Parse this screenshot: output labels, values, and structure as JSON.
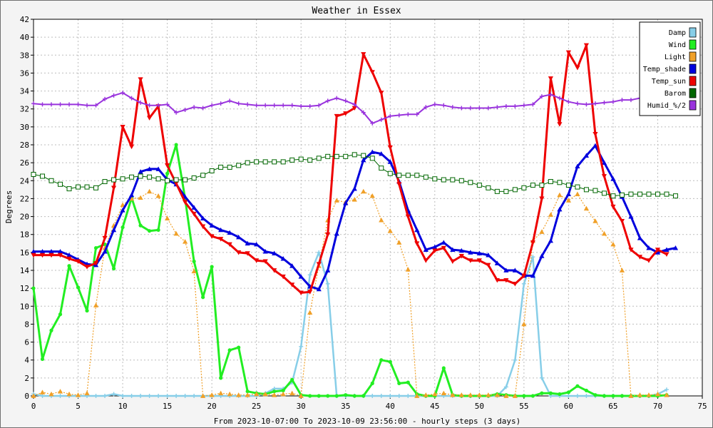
{
  "chart_data": {
    "type": "line",
    "title": "Weather in Essex",
    "xlabel": "From 2023-10-07:00 To 2023-10-09 23:56:00 - hourly steps (3 days)",
    "ylabel": "Degrees",
    "xlim": [
      0,
      75
    ],
    "ylim": [
      0,
      42
    ],
    "xticks": [
      0,
      5,
      10,
      15,
      20,
      25,
      30,
      35,
      40,
      45,
      50,
      55,
      60,
      65,
      70,
      75
    ],
    "yticks": [
      0,
      2,
      4,
      6,
      8,
      10,
      12,
      14,
      16,
      18,
      20,
      22,
      24,
      26,
      28,
      30,
      32,
      34,
      36,
      38,
      40,
      42
    ],
    "grid": true,
    "legend_position": "top-right",
    "series": [
      {
        "name": "Damp",
        "color": "#87cee8",
        "marker": "plus",
        "values": [
          0.2,
          0,
          0,
          0,
          0,
          0,
          0,
          0,
          0,
          0.2,
          0,
          0,
          0,
          0,
          0,
          0,
          0,
          0,
          0,
          0,
          0,
          0,
          0,
          0,
          0,
          0,
          0.3,
          0.8,
          0.8,
          1.5,
          5.5,
          13.5,
          16,
          12.5,
          0,
          0,
          0,
          0,
          0,
          0,
          0,
          0,
          0,
          0,
          0,
          0,
          0,
          0,
          0,
          0,
          0,
          0,
          0,
          1,
          4,
          12.5,
          15.5,
          2,
          0,
          0,
          0,
          0,
          0,
          0,
          0,
          0,
          0,
          0,
          0,
          0,
          0.2,
          0.7
        ]
      },
      {
        "name": "Wind",
        "color": "#22ee22",
        "marker": "circle",
        "values": [
          12,
          4.1,
          7.3,
          9.1,
          14.5,
          12.1,
          9.5,
          16.5,
          16.9,
          14.2,
          18.8,
          22.1,
          19,
          18.4,
          18.5,
          24.8,
          28,
          22,
          15,
          11,
          14.4,
          2,
          5.1,
          5.4,
          0.5,
          0.3,
          0.2,
          0.5,
          0.6,
          1.8,
          0.1,
          0,
          0,
          0,
          0,
          0.1,
          0,
          0,
          1.4,
          4,
          3.8,
          1.4,
          1.5,
          0.2,
          0,
          0,
          3.1,
          0.1,
          0,
          0,
          0,
          0,
          0.2,
          0.1,
          0,
          0,
          0,
          0.3,
          0.3,
          0.2,
          0.4,
          1.1,
          0.6,
          0.1,
          0,
          0,
          0,
          0,
          0,
          0,
          0,
          0.1
        ]
      },
      {
        "name": "Light",
        "color": "#f0a028",
        "marker": "triangle-up",
        "dashed": true,
        "values": [
          0,
          0.4,
          0.2,
          0.5,
          0.2,
          0.1,
          0.3,
          10.1,
          16.5,
          19,
          21.3,
          22,
          22.1,
          22.8,
          22.3,
          19.8,
          18.1,
          17.2,
          13.9,
          0,
          0.1,
          0.3,
          0.2,
          0.1,
          0.1,
          0.2,
          0.2,
          0.1,
          0.2,
          0.3,
          0,
          9.3,
          14.5,
          19.6,
          21.8,
          21.6,
          21.9,
          22.8,
          22.3,
          19.6,
          18.4,
          17.1,
          14.1,
          0,
          0.1,
          0.2,
          0.3,
          0.1,
          0.1,
          0.1,
          0.1,
          0.1,
          0.1,
          0,
          0,
          8,
          17.3,
          18.3,
          20.2,
          22.4,
          21.8,
          22.5,
          20.9,
          19.5,
          18.1,
          16.9,
          14,
          0,
          0.1,
          0.1,
          0.2,
          0.1
        ]
      },
      {
        "name": "Temp_shade",
        "color": "#0000dd",
        "marker": "triangle-up",
        "values": [
          16.1,
          16.1,
          16.1,
          16.1,
          15.7,
          15.2,
          14.7,
          14.6,
          16.1,
          18.5,
          20.7,
          22.4,
          25,
          25.3,
          25.3,
          24.1,
          23.6,
          22.2,
          21,
          19.8,
          19,
          18.5,
          18.2,
          17.7,
          17,
          16.9,
          16.1,
          15.9,
          15.3,
          14.5,
          13.3,
          12.2,
          11.9,
          14,
          18.1,
          21.5,
          23.1,
          26.3,
          27.2,
          27,
          26.1,
          23.9,
          20.7,
          18.5,
          16.3,
          16.6,
          17.1,
          16.3,
          16.2,
          16,
          15.9,
          15.7,
          14.8,
          14,
          14,
          13.4,
          13.4,
          15.6,
          17.3,
          20.8,
          22.5,
          25.6,
          26.8,
          27.9,
          26,
          24.2,
          22.2,
          20,
          17.6,
          16.5,
          16,
          16.3,
          16.5
        ]
      },
      {
        "name": "Temp_sun",
        "color": "#ee0000",
        "marker": "triangle-down",
        "values": [
          15.7,
          15.7,
          15.7,
          15.7,
          15.3,
          15,
          14.4,
          14.8,
          17.6,
          23.2,
          30,
          27.8,
          35.3,
          31,
          32.3,
          25.7,
          23.7,
          21.6,
          20.3,
          18.9,
          17.8,
          17.5,
          16.9,
          16,
          15.9,
          15.1,
          15,
          14,
          13.3,
          12.4,
          11.5,
          11.6,
          14.7,
          18,
          31.2,
          31.5,
          32.1,
          38.1,
          36.1,
          33.8,
          27.7,
          23.6,
          20,
          17,
          15.1,
          16.2,
          16.5,
          15,
          15.6,
          15.1,
          15.1,
          14.6,
          12.9,
          12.9,
          12.5,
          13.4,
          17.1,
          22,
          35.4,
          30.3,
          38.3,
          36.6,
          39.1,
          29.2,
          24.5,
          21.1,
          19.5,
          16.3,
          15.5,
          15.1,
          16.3,
          15.8
        ]
      },
      {
        "name": "Barom",
        "color": "#006600",
        "marker": "square",
        "values": [
          24.7,
          24.5,
          24,
          23.6,
          23.1,
          23.3,
          23.3,
          23.2,
          23.9,
          24.1,
          24.2,
          24.4,
          24.5,
          24.4,
          24.2,
          24,
          24.1,
          24.1,
          24.3,
          24.6,
          25.1,
          25.5,
          25.5,
          25.7,
          26,
          26.1,
          26.1,
          26.1,
          26.1,
          26.3,
          26.4,
          26.3,
          26.5,
          26.7,
          26.7,
          26.7,
          26.9,
          26.8,
          26.5,
          25.4,
          24.8,
          24.6,
          24.6,
          24.6,
          24.4,
          24.2,
          24.1,
          24.1,
          24,
          23.8,
          23.5,
          23.2,
          22.8,
          22.8,
          23,
          23.2,
          23.5,
          23.5,
          23.9,
          23.8,
          23.5,
          23.3,
          23,
          22.9,
          22.6,
          22.3,
          22.4,
          22.5,
          22.5,
          22.5,
          22.5,
          22.5,
          22.3
        ]
      },
      {
        "name": "Humid_%/2",
        "color": "#9933dd",
        "marker": "plus",
        "values": [
          32.6,
          32.5,
          32.5,
          32.5,
          32.5,
          32.5,
          32.4,
          32.4,
          33.1,
          33.5,
          33.8,
          33.2,
          32.7,
          32.4,
          32.4,
          32.5,
          31.6,
          31.9,
          32.2,
          32.1,
          32.4,
          32.6,
          32.9,
          32.6,
          32.5,
          32.4,
          32.4,
          32.4,
          32.4,
          32.4,
          32.3,
          32.3,
          32.4,
          32.9,
          33.2,
          32.9,
          32.5,
          31.6,
          30.4,
          30.8,
          31.2,
          31.3,
          31.4,
          31.4,
          32.2,
          32.5,
          32.4,
          32.2,
          32.1,
          32.1,
          32.1,
          32.1,
          32.2,
          32.3,
          32.3,
          32.4,
          32.5,
          33.4,
          33.6,
          33.2,
          32.8,
          32.6,
          32.5,
          32.6,
          32.7,
          32.8,
          33,
          33,
          33.2,
          34
        ]
      }
    ]
  }
}
